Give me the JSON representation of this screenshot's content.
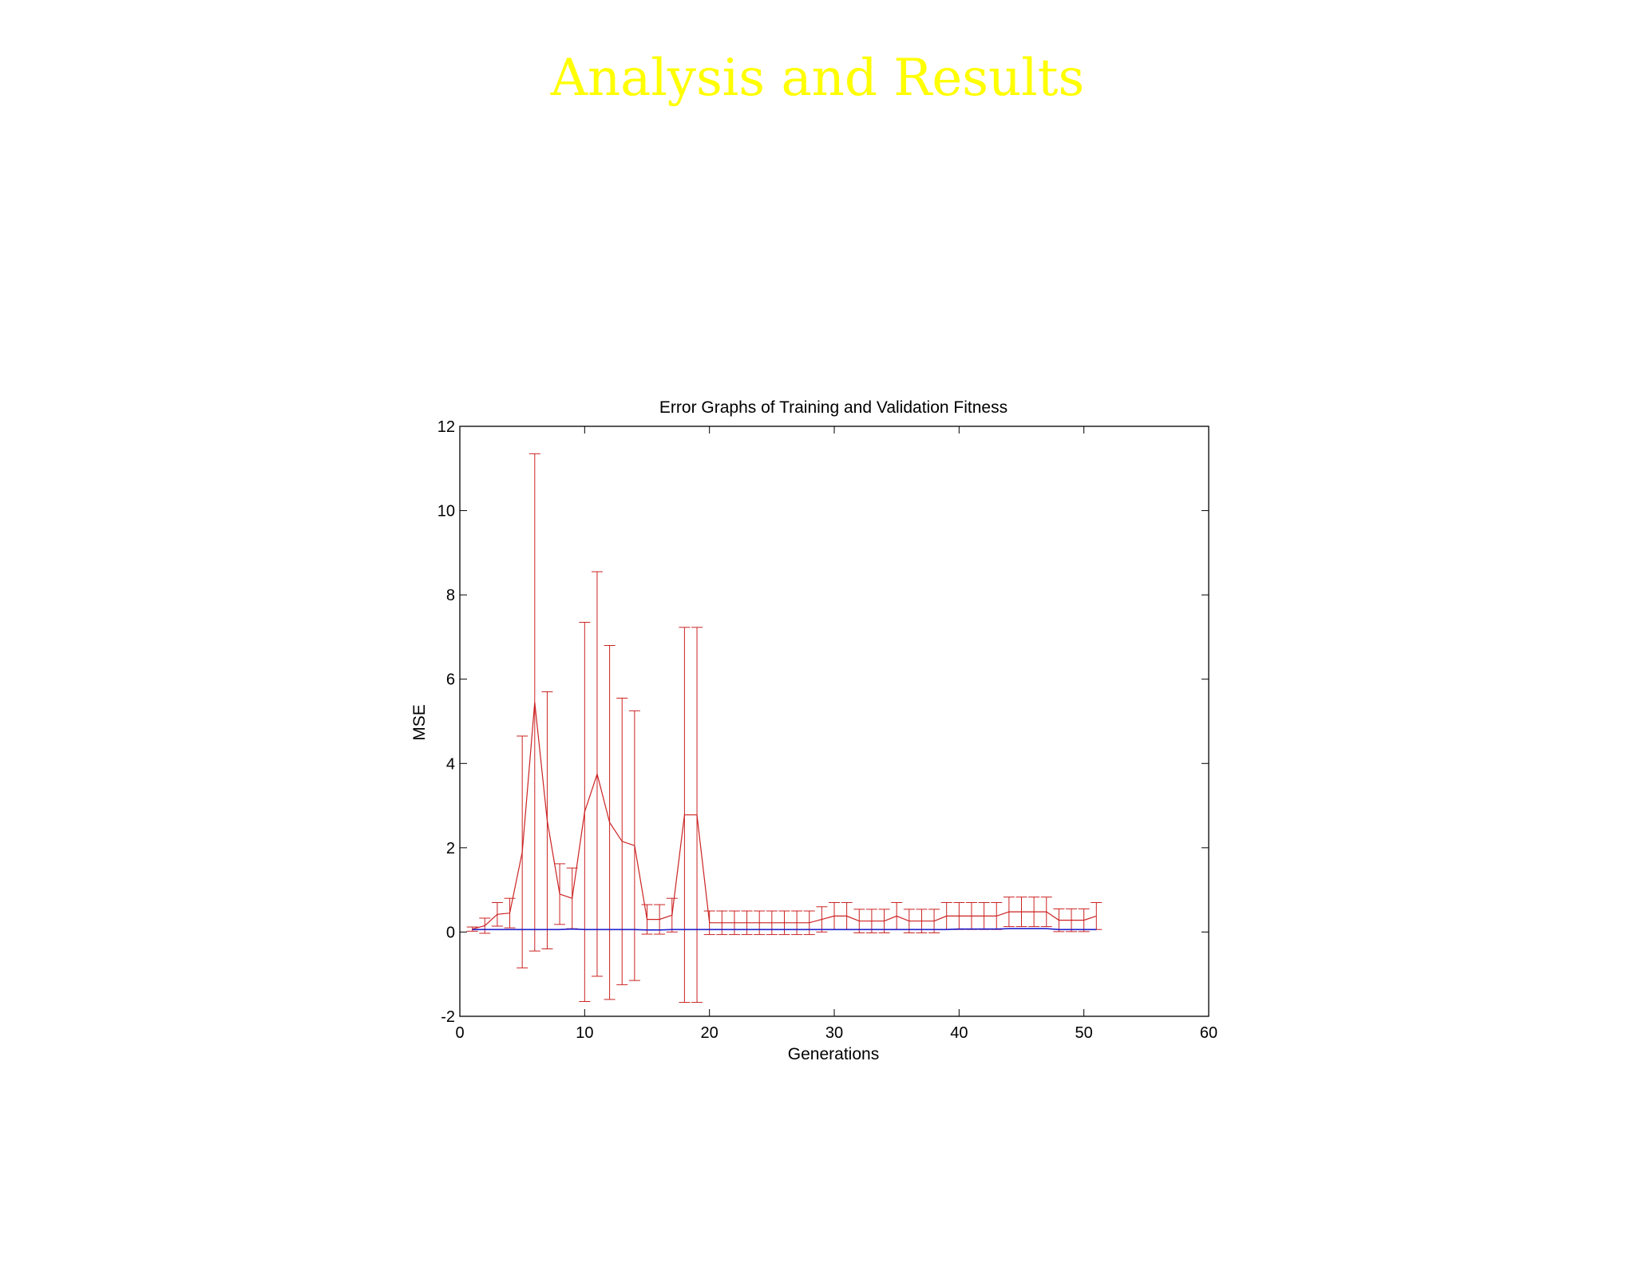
{
  "slide": {
    "title": "Analysis and Results"
  },
  "chart_data": {
    "type": "line",
    "title": "Error Graphs of Training and Validation Fitness",
    "xlabel": "Generations",
    "ylabel": "MSE",
    "xlim": [
      0,
      60
    ],
    "ylim": [
      -2,
      12
    ],
    "xticks": [
      0,
      10,
      20,
      30,
      40,
      50,
      60
    ],
    "yticks": [
      -2,
      0,
      2,
      4,
      6,
      8,
      10,
      12
    ],
    "grid": false,
    "series": [
      {
        "color": "#cc2222",
        "error_bars": true,
        "x": [
          1,
          2,
          3,
          4,
          5,
          6,
          7,
          8,
          9,
          10,
          11,
          12,
          13,
          14,
          15,
          16,
          17,
          18,
          19,
          20,
          21,
          22,
          23,
          24,
          25,
          26,
          27,
          28,
          29,
          30,
          31,
          32,
          33,
          34,
          35,
          36,
          37,
          38,
          39,
          40,
          41,
          42,
          43,
          44,
          45,
          46,
          47,
          48,
          49,
          50,
          51
        ],
        "y": [
          0.07,
          0.15,
          0.42,
          0.45,
          1.9,
          5.45,
          2.65,
          0.9,
          0.8,
          2.85,
          3.75,
          2.6,
          2.15,
          2.05,
          0.3,
          0.3,
          0.4,
          2.78,
          2.78,
          0.22,
          0.22,
          0.22,
          0.22,
          0.22,
          0.22,
          0.22,
          0.22,
          0.22,
          0.3,
          0.38,
          0.38,
          0.26,
          0.26,
          0.26,
          0.38,
          0.26,
          0.26,
          0.26,
          0.38,
          0.38,
          0.38,
          0.38,
          0.38,
          0.48,
          0.48,
          0.48,
          0.48,
          0.28,
          0.28,
          0.28,
          0.38
        ],
        "error": [
          0.05,
          0.18,
          0.28,
          0.35,
          2.75,
          5.9,
          3.05,
          0.72,
          0.72,
          4.5,
          4.8,
          4.2,
          3.4,
          3.2,
          0.35,
          0.35,
          0.4,
          4.45,
          4.45,
          0.28,
          0.28,
          0.28,
          0.28,
          0.28,
          0.28,
          0.28,
          0.28,
          0.28,
          0.3,
          0.32,
          0.32,
          0.28,
          0.28,
          0.28,
          0.32,
          0.28,
          0.28,
          0.28,
          0.32,
          0.32,
          0.32,
          0.32,
          0.32,
          0.35,
          0.35,
          0.35,
          0.35,
          0.27,
          0.27,
          0.27,
          0.32
        ]
      },
      {
        "color": "#2222cc",
        "error_bars": false,
        "x": [
          1,
          2,
          3,
          4,
          5,
          6,
          7,
          8,
          9,
          10,
          11,
          12,
          13,
          14,
          15,
          16,
          17,
          18,
          19,
          20,
          21,
          22,
          23,
          24,
          25,
          26,
          27,
          28,
          29,
          30,
          31,
          32,
          33,
          34,
          35,
          36,
          37,
          38,
          39,
          40,
          41,
          42,
          43,
          44,
          45,
          46,
          47,
          48,
          49,
          50,
          51
        ],
        "y": [
          0.06,
          0.06,
          0.06,
          0.06,
          0.06,
          0.06,
          0.06,
          0.06,
          0.07,
          0.06,
          0.06,
          0.06,
          0.06,
          0.06,
          0.05,
          0.05,
          0.06,
          0.06,
          0.06,
          0.06,
          0.06,
          0.06,
          0.06,
          0.06,
          0.06,
          0.06,
          0.06,
          0.06,
          0.06,
          0.06,
          0.06,
          0.06,
          0.06,
          0.06,
          0.06,
          0.06,
          0.06,
          0.06,
          0.06,
          0.07,
          0.07,
          0.07,
          0.07,
          0.08,
          0.08,
          0.08,
          0.08,
          0.06,
          0.06,
          0.06,
          0.06
        ]
      }
    ]
  }
}
